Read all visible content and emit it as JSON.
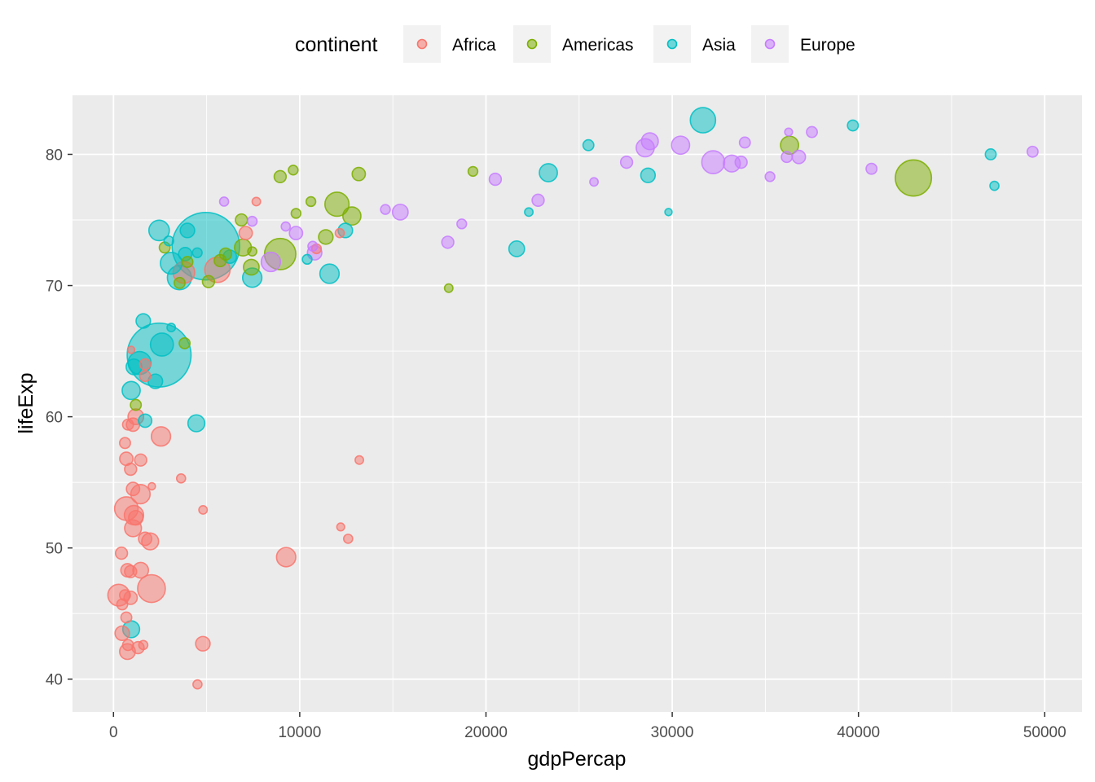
{
  "chart_data": {
    "type": "scatter",
    "xlabel": "gdpPercap",
    "ylabel": "lifeExp",
    "xlim": [
      -2200,
      52000
    ],
    "ylim": [
      37.5,
      84.5
    ],
    "xticks": [
      0,
      10000,
      20000,
      30000,
      40000,
      50000
    ],
    "xtick_labels": [
      "0",
      "10000",
      "20000",
      "30000",
      "40000",
      "50000"
    ],
    "yticks": [
      40,
      50,
      60,
      70,
      80
    ],
    "ytick_labels": [
      "40",
      "50",
      "60",
      "70",
      "80"
    ],
    "grid": true,
    "legend": {
      "title": "continent",
      "position": "top",
      "entries": [
        "Africa",
        "Americas",
        "Asia",
        "Europe"
      ]
    },
    "colors": {
      "Africa": "#F8766D",
      "Americas": "#7CAE00",
      "Asia": "#00BFC4",
      "Europe": "#C77CFF"
    },
    "series": [
      {
        "name": "Africa",
        "points": [
          [
            5580,
            71.2,
            3.6
          ],
          [
            3780,
            71.0,
            3.0
          ],
          [
            7100,
            74.0,
            1.6
          ],
          [
            7670,
            76.4,
            0.8
          ],
          [
            12150,
            74.0,
            0.9
          ],
          [
            10900,
            72.8,
            1.0
          ],
          [
            1700,
            64.0,
            1.2
          ],
          [
            1700,
            63.1,
            1.2
          ],
          [
            950,
            65.1,
            0.6
          ],
          [
            1200,
            60.0,
            2.0
          ],
          [
            1050,
            59.4,
            1.6
          ],
          [
            780,
            59.4,
            1.2
          ],
          [
            620,
            58.0,
            1.2
          ],
          [
            2550,
            58.5,
            2.6
          ],
          [
            690,
            56.8,
            1.6
          ],
          [
            1460,
            56.7,
            1.4
          ],
          [
            920,
            56.0,
            1.4
          ],
          [
            3630,
            55.3,
            0.9
          ],
          [
            13200,
            56.7,
            0.8
          ],
          [
            1050,
            54.5,
            1.6
          ],
          [
            1450,
            54.1,
            2.6
          ],
          [
            2060,
            54.7,
            0.6
          ],
          [
            690,
            53.0,
            3.3
          ],
          [
            1100,
            52.5,
            2.6
          ],
          [
            1200,
            52.3,
            1.8
          ],
          [
            1050,
            51.5,
            2.2
          ],
          [
            4810,
            52.9,
            0.8
          ],
          [
            12200,
            51.6,
            0.7
          ],
          [
            12600,
            50.7,
            0.9
          ],
          [
            1700,
            50.7,
            1.6
          ],
          [
            1970,
            50.5,
            2.2
          ],
          [
            9270,
            49.3,
            2.6
          ],
          [
            430,
            49.6,
            1.4
          ],
          [
            750,
            48.3,
            1.6
          ],
          [
            920,
            48.2,
            1.4
          ],
          [
            1460,
            48.3,
            2.0
          ],
          [
            280,
            46.4,
            3.0
          ],
          [
            2040,
            46.9,
            4.0
          ],
          [
            620,
            46.4,
            1.2
          ],
          [
            920,
            46.2,
            1.6
          ],
          [
            470,
            45.7,
            1.2
          ],
          [
            690,
            44.7,
            1.2
          ],
          [
            470,
            43.5,
            1.8
          ],
          [
            780,
            42.6,
            1.2
          ],
          [
            1320,
            42.4,
            1.4
          ],
          [
            1600,
            42.6,
            0.9
          ],
          [
            750,
            42.1,
            2.0
          ],
          [
            4800,
            42.7,
            1.8
          ],
          [
            4510,
            39.6,
            0.9
          ]
        ]
      },
      {
        "name": "Americas",
        "points": [
          [
            42950,
            78.2,
            5.4
          ],
          [
            12000,
            76.2,
            3.4
          ],
          [
            36300,
            80.7,
            2.4
          ],
          [
            8950,
            72.4,
            4.6
          ],
          [
            12800,
            75.3,
            2.4
          ],
          [
            6950,
            72.9,
            2.2
          ],
          [
            11400,
            73.7,
            1.8
          ],
          [
            7400,
            71.4,
            2.0
          ],
          [
            6870,
            75.0,
            1.4
          ],
          [
            9800,
            75.5,
            1.0
          ],
          [
            8950,
            78.3,
            1.4
          ],
          [
            9650,
            78.8,
            1.0
          ],
          [
            10600,
            76.4,
            1.0
          ],
          [
            13170,
            78.5,
            1.6
          ],
          [
            19300,
            78.7,
            1.0
          ],
          [
            5730,
            71.9,
            1.4
          ],
          [
            6020,
            72.4,
            1.4
          ],
          [
            7450,
            72.6,
            0.9
          ],
          [
            5100,
            70.3,
            1.4
          ],
          [
            3820,
            65.6,
            1.2
          ],
          [
            3550,
            70.2,
            1.2
          ],
          [
            2750,
            72.9,
            1.2
          ],
          [
            3970,
            71.8,
            1.2
          ],
          [
            1200,
            60.9,
            1.2
          ],
          [
            18000,
            69.8,
            0.8
          ]
        ]
      },
      {
        "name": "Asia",
        "points": [
          [
            4960,
            73.0,
            10.6
          ],
          [
            2450,
            64.7,
            10.0
          ],
          [
            31650,
            82.6,
            3.6
          ],
          [
            2450,
            74.2,
            2.8
          ],
          [
            3100,
            71.7,
            3.0
          ],
          [
            3540,
            70.6,
            3.4
          ],
          [
            7450,
            70.6,
            2.6
          ],
          [
            11600,
            70.9,
            2.6
          ],
          [
            2600,
            65.5,
            3.2
          ],
          [
            1400,
            64.1,
            3.2
          ],
          [
            1100,
            63.8,
            2.0
          ],
          [
            2250,
            62.7,
            1.8
          ],
          [
            950,
            62.0,
            2.4
          ],
          [
            1600,
            67.3,
            1.8
          ],
          [
            1700,
            59.7,
            1.6
          ],
          [
            4450,
            59.5,
            2.2
          ],
          [
            3970,
            74.2,
            1.8
          ],
          [
            3850,
            72.4,
            1.6
          ],
          [
            4500,
            72.5,
            1.0
          ],
          [
            2970,
            73.4,
            1.0
          ],
          [
            3100,
            66.8,
            0.8
          ],
          [
            10400,
            72.0,
            1.0
          ],
          [
            12450,
            74.2,
            1.8
          ],
          [
            6250,
            72.2,
            1.6
          ],
          [
            22300,
            75.6,
            0.8
          ],
          [
            21650,
            72.8,
            2.0
          ],
          [
            23350,
            78.6,
            2.4
          ],
          [
            25500,
            80.7,
            1.2
          ],
          [
            28700,
            78.4,
            1.8
          ],
          [
            29800,
            75.6,
            0.6
          ],
          [
            39700,
            82.2,
            1.2
          ],
          [
            47100,
            80.0,
            1.2
          ],
          [
            47300,
            77.6,
            0.9
          ],
          [
            950,
            43.8,
            2.2
          ]
        ]
      },
      {
        "name": "Europe",
        "points": [
          [
            5940,
            76.4,
            0.9
          ],
          [
            7450,
            74.9,
            1.0
          ],
          [
            9250,
            74.5,
            0.9
          ],
          [
            9800,
            74.0,
            1.6
          ],
          [
            8450,
            71.8,
            2.6
          ],
          [
            10700,
            73.0,
            1.0
          ],
          [
            10800,
            72.5,
            1.8
          ],
          [
            14600,
            75.8,
            1.0
          ],
          [
            15400,
            75.6,
            2.0
          ],
          [
            17950,
            73.3,
            1.4
          ],
          [
            18700,
            74.7,
            1.0
          ],
          [
            20500,
            78.1,
            1.4
          ],
          [
            22800,
            76.5,
            1.4
          ],
          [
            25800,
            77.9,
            0.8
          ],
          [
            27550,
            79.4,
            1.4
          ],
          [
            28550,
            80.5,
            2.4
          ],
          [
            28800,
            81.0,
            2.2
          ],
          [
            30450,
            80.7,
            2.4
          ],
          [
            32200,
            79.4,
            3.2
          ],
          [
            33200,
            79.3,
            2.2
          ],
          [
            33700,
            79.4,
            1.4
          ],
          [
            33900,
            80.9,
            1.2
          ],
          [
            35250,
            78.3,
            1.0
          ],
          [
            36150,
            79.8,
            1.2
          ],
          [
            36250,
            81.7,
            0.7
          ],
          [
            36800,
            79.8,
            1.6
          ],
          [
            37500,
            81.7,
            1.2
          ],
          [
            40700,
            78.9,
            1.2
          ],
          [
            49350,
            80.2,
            1.2
          ]
        ]
      }
    ]
  }
}
